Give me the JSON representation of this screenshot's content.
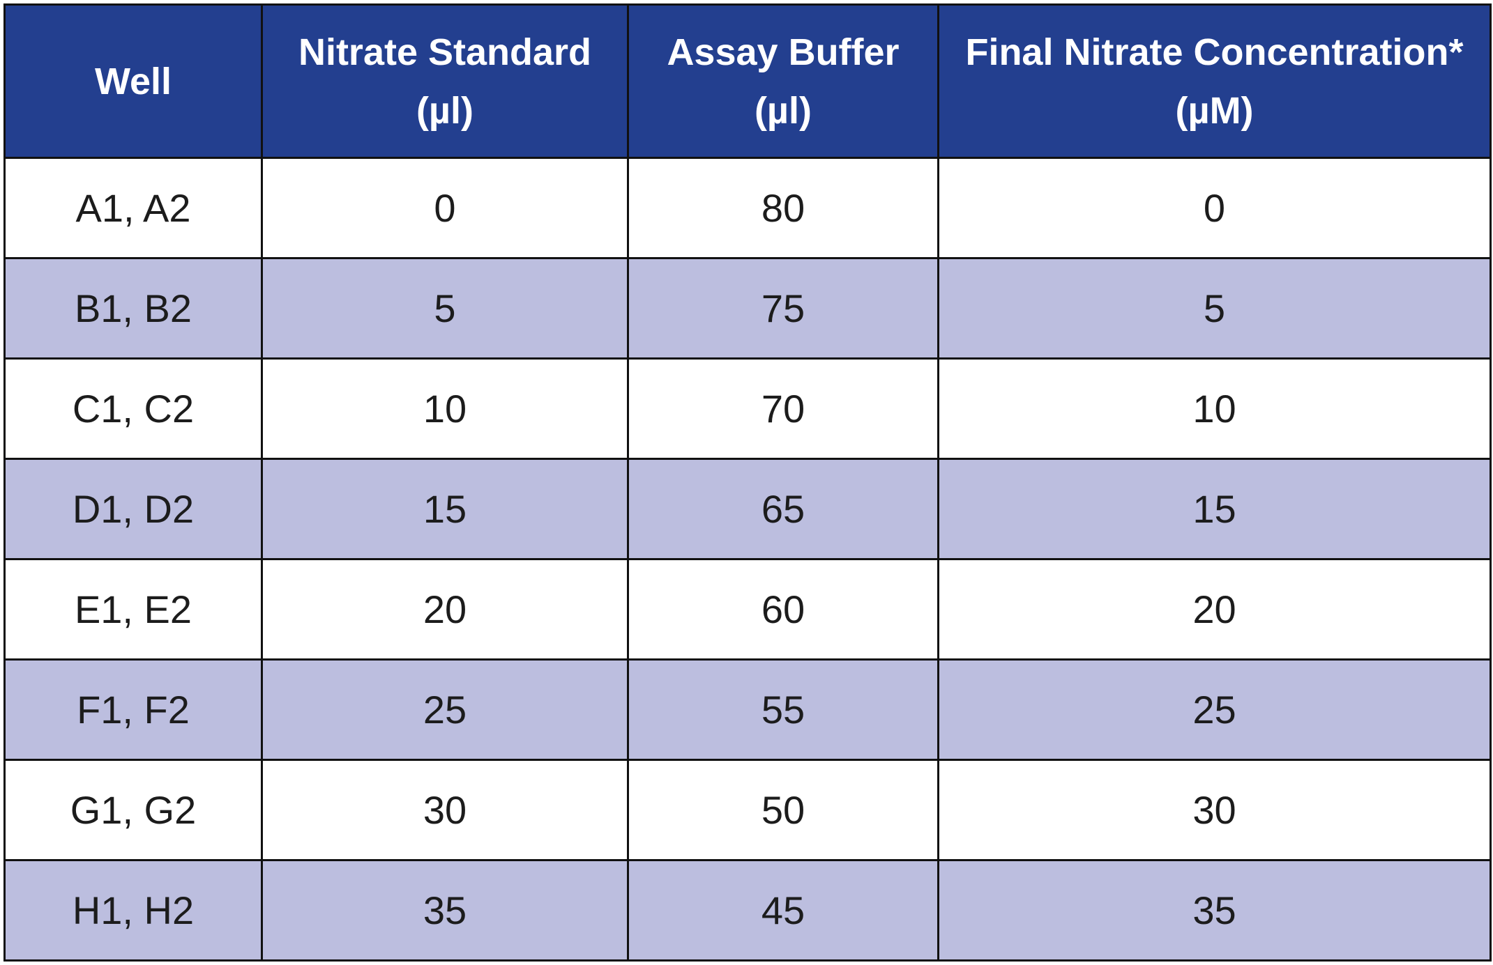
{
  "table": {
    "headers": [
      {
        "line1": "Well",
        "line2": ""
      },
      {
        "line1": "Nitrate Standard",
        "line2": "(µl)"
      },
      {
        "line1": "Assay Buffer",
        "line2": "(µl)"
      },
      {
        "line1": "Final Nitrate Concentration*",
        "line2": "(µM)"
      }
    ],
    "rows": [
      [
        "A1, A2",
        "0",
        "80",
        "0"
      ],
      [
        "B1, B2",
        "5",
        "75",
        "5"
      ],
      [
        "C1, C2",
        "10",
        "70",
        "10"
      ],
      [
        "D1, D2",
        "15",
        "65",
        "15"
      ],
      [
        "E1, E2",
        "20",
        "60",
        "20"
      ],
      [
        "F1, F2",
        "25",
        "55",
        "25"
      ],
      [
        "G1, G2",
        "30",
        "50",
        "30"
      ],
      [
        "H1, H2",
        "35",
        "45",
        "35"
      ]
    ]
  },
  "colors": {
    "header_bg": "#233f8f",
    "header_text": "#ffffff",
    "stripe_bg": "#bcbedf",
    "row_bg": "#ffffff",
    "border": "#111111"
  }
}
